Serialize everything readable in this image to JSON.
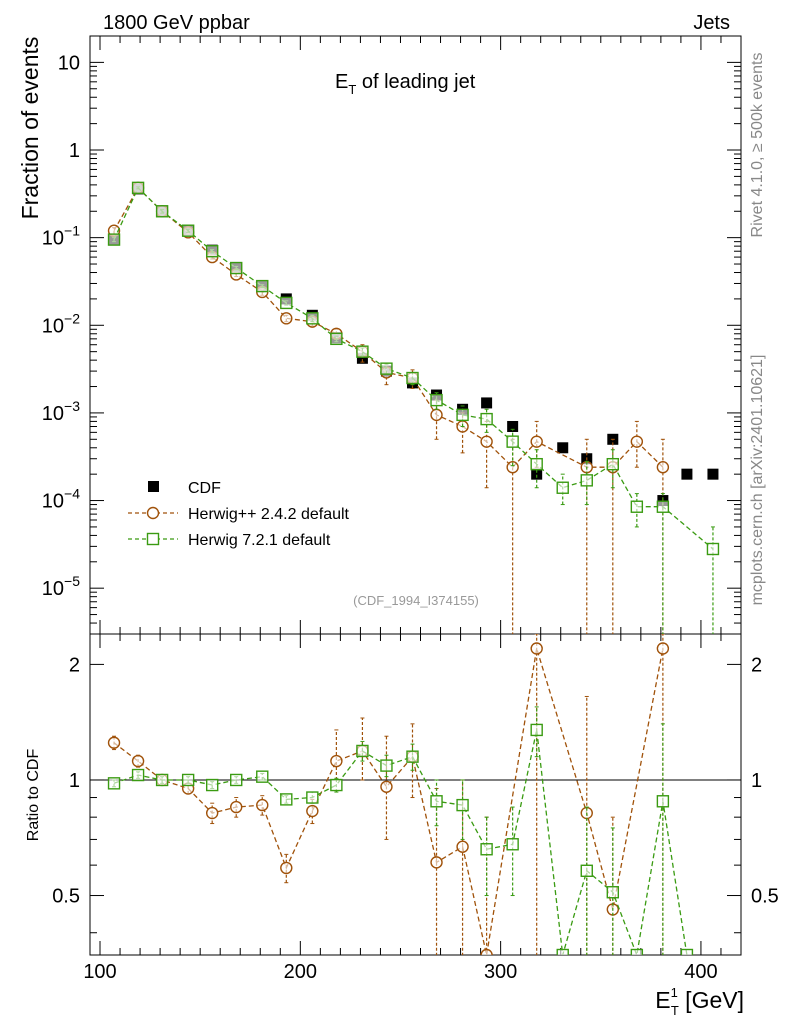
{
  "header": {
    "left": "1800 GeV ppbar",
    "right": "Jets"
  },
  "side_labels": {
    "rivet": "Rivet 4.1.0, ≥ 500k events",
    "mcplots": "mcplots.cern.ch [arXiv:2401.10621]"
  },
  "colors": {
    "cdf": "#000000",
    "herwigpp": "#a0520a",
    "herwig7": "#3a9b12"
  },
  "chart_data": [
    {
      "type": "scatter",
      "panel": "main",
      "title_main": "E",
      "title_sub": "T",
      "title_rest": " of leading jet",
      "ylabel": "Fraction of events",
      "yscale": "log",
      "ylim": [
        3e-06,
        20
      ],
      "xlim": [
        95,
        420
      ],
      "yticks": [
        {
          "value": 1e-05,
          "base": "10",
          "exp": "−5"
        },
        {
          "value": 0.0001,
          "base": "10",
          "exp": "−4"
        },
        {
          "value": 0.001,
          "base": "10",
          "exp": "−3"
        },
        {
          "value": 0.01,
          "base": "10",
          "exp": "−2"
        },
        {
          "value": 0.1,
          "base": "10",
          "exp": "−1"
        },
        {
          "value": 1,
          "base": "1",
          "exp": ""
        },
        {
          "value": 10,
          "base": "10",
          "exp": ""
        }
      ],
      "watermark": "(CDF_1994_I374155)",
      "legend": [
        "CDF",
        "Herwig++ 2.4.2 default",
        "Herwig 7.2.1 default"
      ],
      "x": [
        107,
        119,
        131,
        144,
        156,
        168,
        181,
        193,
        206,
        218,
        231,
        243,
        256,
        268,
        281,
        293,
        306,
        318,
        331,
        343,
        356,
        368,
        381,
        393,
        406
      ],
      "series": [
        {
          "name": "CDF",
          "values": [
            0.095,
            0.36,
            0.2,
            0.12,
            0.072,
            0.045,
            0.028,
            0.02,
            0.013,
            0.0072,
            0.0042,
            0.003,
            0.0022,
            0.0016,
            0.0011,
            0.0013,
            0.0007,
            0.0002,
            0.0004,
            0.0003,
            0.0005,
            null,
            0.0001,
            0.0002,
            0.0002
          ]
        },
        {
          "name": "Herwig++ 2.4.2 default",
          "values": [
            0.12,
            0.37,
            0.2,
            0.115,
            0.06,
            0.038,
            0.024,
            0.012,
            0.011,
            0.008,
            0.005,
            0.0029,
            0.0025,
            0.00095,
            0.0007,
            0.00047,
            0.00024,
            0.00047,
            null,
            0.00024,
            0.00024,
            0.00047,
            0.00024,
            null,
            null
          ],
          "err_lo": [
            0.11,
            0.36,
            0.19,
            0.11,
            0.057,
            0.036,
            0.022,
            0.011,
            0.0098,
            0.0069,
            0.0038,
            0.0021,
            0.0019,
            0.0005,
            0.00035,
            0.00014,
            1.5e-06,
            0.00024,
            null,
            1.5e-06,
            1.5e-06,
            0.00024,
            1.5e-06,
            null,
            null
          ],
          "err_hi": [
            0.13,
            0.38,
            0.21,
            0.12,
            0.063,
            0.04,
            0.026,
            0.013,
            0.012,
            0.009,
            0.006,
            0.0037,
            0.0031,
            0.0014,
            0.001,
            0.0008,
            0.0005,
            0.0008,
            null,
            0.0005,
            0.0005,
            0.0008,
            0.0005,
            null,
            null
          ]
        },
        {
          "name": "Herwig 7.2.1 default",
          "values": [
            0.095,
            0.37,
            0.2,
            0.12,
            0.07,
            0.045,
            0.028,
            0.018,
            0.012,
            0.007,
            0.005,
            0.0032,
            0.0025,
            0.0014,
            0.00095,
            0.00085,
            0.00047,
            0.00026,
            0.00014,
            0.00017,
            0.00026,
            8.5e-05,
            8.5e-05,
            null,
            2.8e-05
          ],
          "err_lo": [
            0.09,
            0.36,
            0.19,
            0.115,
            0.067,
            0.043,
            0.027,
            0.017,
            0.011,
            0.0065,
            0.0045,
            0.0028,
            0.0021,
            0.0011,
            0.0007,
            0.0006,
            0.00025,
            0.00014,
            9e-05,
            9e-05,
            0.00014,
            5e-05,
            1.5e-06,
            null,
            1.5e-06
          ],
          "err_hi": [
            0.1,
            0.38,
            0.21,
            0.125,
            0.073,
            0.047,
            0.029,
            0.019,
            0.013,
            0.0075,
            0.0055,
            0.0036,
            0.0029,
            0.0017,
            0.0012,
            0.0011,
            0.00065,
            0.00038,
            0.0002,
            0.00028,
            0.00038,
            0.00012,
            0.00012,
            null,
            5e-05
          ]
        }
      ]
    },
    {
      "type": "scatter",
      "panel": "ratio",
      "ylabel": "Ratio to CDF",
      "yscale": "log",
      "ylim": [
        0.35,
        2.4
      ],
      "yticks": [
        {
          "value": 0.5,
          "label": "0.5"
        },
        {
          "value": 1,
          "label": "1"
        },
        {
          "value": 2,
          "label": "2"
        }
      ],
      "xlim": [
        95,
        420
      ],
      "xticks": [
        100,
        200,
        300,
        400
      ],
      "xlabel_main": "E",
      "xlabel_sup": "1",
      "xlabel_sub": "T",
      "xlabel_rest": " [GeV]",
      "x": [
        107,
        119,
        131,
        144,
        156,
        168,
        181,
        193,
        206,
        218,
        231,
        243,
        256,
        268,
        281,
        293,
        306,
        318,
        331,
        343,
        356,
        368,
        381,
        393,
        406
      ],
      "series": [
        {
          "name": "Herwig++ 2.4.2 default",
          "values": [
            1.25,
            1.12,
            1.0,
            0.95,
            0.82,
            0.85,
            0.86,
            0.59,
            0.83,
            1.12,
            1.19,
            0.96,
            1.15,
            0.61,
            0.67,
            0.35,
            null,
            2.2,
            null,
            0.82,
            0.46,
            null,
            2.2,
            null,
            null
          ],
          "err_lo": [
            1.2,
            1.08,
            0.97,
            0.92,
            0.77,
            0.8,
            0.81,
            0.54,
            0.77,
            1.0,
            1.0,
            0.7,
            0.9,
            0.3,
            0.3,
            0.3,
            null,
            0.3,
            null,
            0.3,
            0.3,
            null,
            0.3,
            null,
            null
          ],
          "err_hi": [
            1.3,
            1.16,
            1.03,
            0.98,
            0.87,
            0.9,
            0.91,
            0.64,
            0.89,
            1.35,
            1.45,
            1.3,
            1.4,
            0.95,
            1.0,
            0.8,
            null,
            2.4,
            null,
            1.65,
            0.8,
            null,
            2.4,
            null,
            null
          ]
        },
        {
          "name": "Herwig 7.2.1 default",
          "values": [
            0.98,
            1.03,
            1.0,
            1.0,
            0.97,
            1.0,
            1.02,
            0.89,
            0.9,
            0.97,
            1.19,
            1.09,
            1.15,
            0.88,
            0.86,
            0.66,
            0.68,
            1.35,
            0.35,
            0.58,
            0.51,
            0.35,
            0.88,
            0.35,
            null
          ],
          "err_lo": [
            0.96,
            1.01,
            0.98,
            0.98,
            0.95,
            0.98,
            1.0,
            0.87,
            0.87,
            0.93,
            1.12,
            1.02,
            1.06,
            0.76,
            0.7,
            0.5,
            0.5,
            1.15,
            null,
            0.3,
            0.3,
            null,
            0.3,
            null,
            null
          ],
          "err_hi": [
            1.0,
            1.05,
            1.02,
            1.02,
            0.99,
            1.02,
            1.04,
            0.91,
            0.93,
            1.01,
            1.26,
            1.16,
            1.24,
            1.0,
            1.0,
            0.8,
            0.85,
            1.55,
            null,
            0.85,
            0.75,
            null,
            1.4,
            null,
            null
          ]
        }
      ]
    }
  ]
}
